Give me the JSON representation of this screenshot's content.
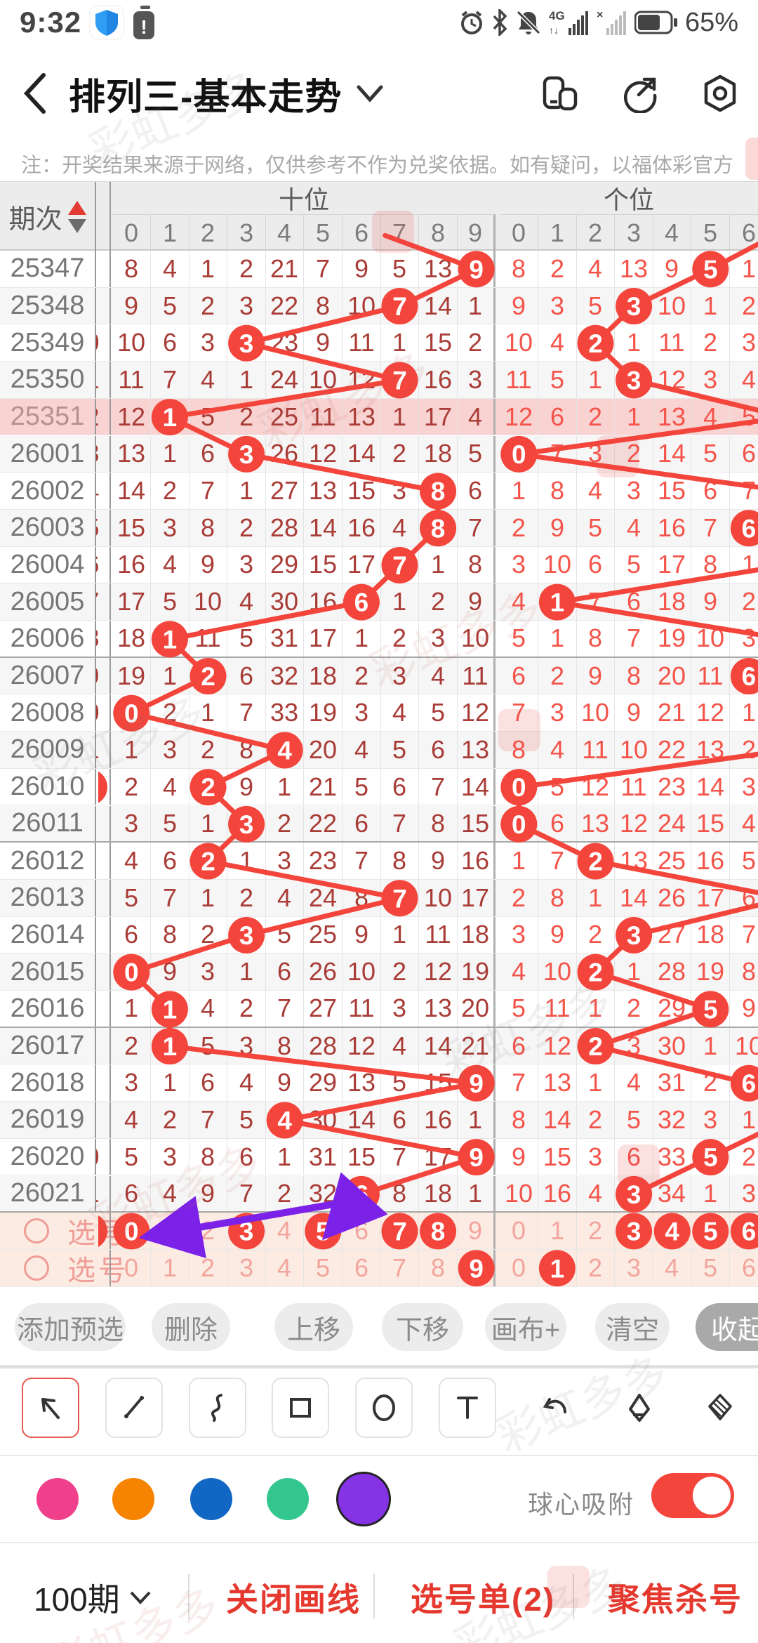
{
  "status_bar": {
    "time": "9:32",
    "battery_pct": "65%",
    "network": "4G"
  },
  "title_bar": {
    "title": "排列三-基本走势"
  },
  "notice": "注：开奖结果来源于网络，仅供参考不作为兑奖依据。如有疑问，以福体彩官方数据为准。",
  "watermark": "彩虹多多",
  "table": {
    "period_header": "期次",
    "tens_header": "十位",
    "units_header": "个位",
    "tens_digits": [
      "0",
      "1",
      "2",
      "3",
      "4",
      "5",
      "6",
      "7",
      "8",
      "9"
    ],
    "units_digits": [
      "0",
      "1",
      "2",
      "3",
      "4",
      "5",
      "6"
    ],
    "pick_label": "选号",
    "rows": [
      {
        "id": "25347",
        "sliver": "",
        "tens": [
          "8",
          "4",
          "1",
          "2",
          "21",
          "7",
          "9",
          "5",
          "13",
          "(9)"
        ],
        "units": [
          "8",
          "2",
          "4",
          "13",
          "9",
          "(5)",
          "1"
        ]
      },
      {
        "id": "25348",
        "sliver": "",
        "tens": [
          "9",
          "5",
          "2",
          "3",
          "22",
          "8",
          "10",
          "(7)",
          "14",
          "1"
        ],
        "units": [
          "9",
          "3",
          "5",
          "(3)",
          "10",
          "1",
          "2"
        ]
      },
      {
        "id": "25349",
        "sliver": "0",
        "tens": [
          "10",
          "6",
          "3",
          "(3)",
          "23",
          "9",
          "11",
          "1",
          "15",
          "2"
        ],
        "units": [
          "10",
          "4",
          "(2)",
          "1",
          "11",
          "2",
          "3"
        ]
      },
      {
        "id": "25350",
        "sliver": "1",
        "tens": [
          "11",
          "7",
          "4",
          "1",
          "24",
          "10",
          "12",
          "(7)",
          "16",
          "3"
        ],
        "units": [
          "11",
          "5",
          "1",
          "(3)",
          "12",
          "3",
          "4"
        ]
      },
      {
        "id": "25351",
        "sliver": "2",
        "tens": [
          "12",
          "(1)",
          "5",
          "2",
          "25",
          "11",
          "13",
          "1",
          "17",
          "4"
        ],
        "units": [
          "12",
          "6",
          "2",
          "1",
          "13",
          "4",
          "5"
        ],
        "units_off": true,
        "highlight": true
      },
      {
        "id": "26001",
        "sliver": "3",
        "tens": [
          "13",
          "1",
          "6",
          "(3)",
          "26",
          "12",
          "14",
          "2",
          "18",
          "5"
        ],
        "units": [
          "(0)",
          "7",
          "3",
          "2",
          "14",
          "5",
          "6"
        ]
      },
      {
        "id": "26002",
        "sliver": "4",
        "tens": [
          "14",
          "2",
          "7",
          "1",
          "27",
          "13",
          "15",
          "3",
          "(8)",
          "6"
        ],
        "units": [
          "1",
          "8",
          "4",
          "3",
          "15",
          "6",
          "7"
        ],
        "units_off": true
      },
      {
        "id": "26003",
        "sliver": "5",
        "tens": [
          "15",
          "3",
          "8",
          "2",
          "28",
          "14",
          "16",
          "4",
          "(8)",
          "7"
        ],
        "units": [
          "2",
          "9",
          "5",
          "4",
          "16",
          "7",
          "(6)"
        ]
      },
      {
        "id": "26004",
        "sliver": "6",
        "tens": [
          "16",
          "4",
          "9",
          "3",
          "29",
          "15",
          "17",
          "(7)",
          "1",
          "8"
        ],
        "units": [
          "3",
          "10",
          "6",
          "5",
          "17",
          "8",
          "1"
        ],
        "units_off": true
      },
      {
        "id": "26005",
        "sliver": "7",
        "tens": [
          "17",
          "5",
          "10",
          "4",
          "30",
          "16",
          "(6)",
          "1",
          "2",
          "9"
        ],
        "units": [
          "4",
          "(1)",
          "7",
          "6",
          "18",
          "9",
          "2"
        ]
      },
      {
        "id": "26006",
        "sliver": "8",
        "tens": [
          "18",
          "(1)",
          "11",
          "5",
          "31",
          "17",
          "1",
          "2",
          "3",
          "10"
        ],
        "units": [
          "5",
          "1",
          "8",
          "7",
          "19",
          "10",
          "3"
        ],
        "units_off": true,
        "group_end": true
      },
      {
        "id": "26007",
        "sliver": "9",
        "tens": [
          "19",
          "1",
          "(2)",
          "6",
          "32",
          "18",
          "2",
          "3",
          "4",
          "11"
        ],
        "units": [
          "6",
          "2",
          "9",
          "8",
          "20",
          "11",
          "(6)"
        ]
      },
      {
        "id": "26008",
        "sliver": "0",
        "tens": [
          "(0)",
          "2",
          "1",
          "7",
          "33",
          "19",
          "3",
          "4",
          "5",
          "12"
        ],
        "units": [
          "7",
          "3",
          "10",
          "9",
          "21",
          "12",
          "1"
        ],
        "units_off": true
      },
      {
        "id": "26009",
        "sliver": "1",
        "tens": [
          "1",
          "3",
          "2",
          "8",
          "(4)",
          "20",
          "4",
          "5",
          "6",
          "13"
        ],
        "units": [
          "8",
          "4",
          "11",
          "10",
          "22",
          "13",
          "2"
        ],
        "units_off": true
      },
      {
        "id": "26010",
        "sliver": "",
        "sliver_circle": true,
        "tens": [
          "2",
          "4",
          "(2)",
          "9",
          "1",
          "21",
          "5",
          "6",
          "7",
          "14"
        ],
        "units": [
          "(0)",
          "5",
          "12",
          "11",
          "23",
          "14",
          "3"
        ]
      },
      {
        "id": "26011",
        "sliver": "",
        "tens": [
          "3",
          "5",
          "1",
          "(3)",
          "2",
          "22",
          "6",
          "7",
          "8",
          "15"
        ],
        "units": [
          "(0)",
          "6",
          "13",
          "12",
          "24",
          "15",
          "4"
        ],
        "group_end": true
      },
      {
        "id": "26012",
        "sliver": "",
        "tens": [
          "4",
          "6",
          "(2)",
          "1",
          "3",
          "23",
          "7",
          "8",
          "9",
          "16"
        ],
        "units": [
          "1",
          "7",
          "(2)",
          "13",
          "25",
          "16",
          "5"
        ]
      },
      {
        "id": "26013",
        "sliver": "",
        "tens": [
          "5",
          "7",
          "1",
          "2",
          "4",
          "24",
          "8",
          "(7)",
          "10",
          "17"
        ],
        "units": [
          "2",
          "8",
          "1",
          "14",
          "26",
          "17",
          "6"
        ],
        "units_off": true
      },
      {
        "id": "26014",
        "sliver": "",
        "tens": [
          "6",
          "8",
          "2",
          "(3)",
          "5",
          "25",
          "9",
          "1",
          "11",
          "18"
        ],
        "units": [
          "3",
          "9",
          "2",
          "(3)",
          "27",
          "18",
          "7"
        ]
      },
      {
        "id": "26015",
        "sliver": "",
        "tens": [
          "(0)",
          "9",
          "3",
          "1",
          "6",
          "26",
          "10",
          "2",
          "12",
          "19"
        ],
        "units": [
          "4",
          "10",
          "(2)",
          "1",
          "28",
          "19",
          "8"
        ]
      },
      {
        "id": "26016",
        "sliver": "",
        "tens": [
          "1",
          "(1)",
          "4",
          "2",
          "7",
          "27",
          "11",
          "3",
          "13",
          "20"
        ],
        "units": [
          "5",
          "11",
          "1",
          "2",
          "29",
          "(5)",
          "9"
        ],
        "group_end": true
      },
      {
        "id": "26017",
        "sliver": "",
        "tens": [
          "2",
          "(1)",
          "5",
          "3",
          "8",
          "28",
          "12",
          "4",
          "14",
          "21"
        ],
        "units": [
          "6",
          "12",
          "(2)",
          "3",
          "30",
          "1",
          "10"
        ]
      },
      {
        "id": "26018",
        "sliver": "",
        "tens": [
          "3",
          "1",
          "6",
          "4",
          "9",
          "29",
          "13",
          "5",
          "15",
          "(9)"
        ],
        "units": [
          "7",
          "13",
          "1",
          "4",
          "31",
          "2",
          "(6)"
        ]
      },
      {
        "id": "26019",
        "sliver": "",
        "tens": [
          "4",
          "2",
          "7",
          "5",
          "(4)",
          "30",
          "14",
          "6",
          "16",
          "1"
        ],
        "units": [
          "8",
          "14",
          "2",
          "5",
          "32",
          "3",
          "1"
        ],
        "units_off": true
      },
      {
        "id": "26020",
        "sliver": "0",
        "tens": [
          "5",
          "3",
          "8",
          "6",
          "1",
          "31",
          "15",
          "7",
          "17",
          "(9)"
        ],
        "units": [
          "9",
          "15",
          "3",
          "6",
          "33",
          "(5)",
          "2"
        ]
      },
      {
        "id": "26021",
        "sliver": "1",
        "tens": [
          "6",
          "4",
          "9",
          "7",
          "2",
          "32",
          "(6)",
          "8",
          "18",
          "1"
        ],
        "units": [
          "10",
          "16",
          "4",
          "(3)",
          "34",
          "1",
          "3"
        ],
        "group_end": true
      }
    ],
    "pick_rows": [
      {
        "label": "选号",
        "sliver_circle": true,
        "tens": [
          "(0)",
          "1",
          "2",
          "(3)",
          "4",
          "(5)",
          "6",
          "(7)",
          "(8)",
          "9"
        ],
        "units": [
          "0",
          "1",
          "2",
          "(3)",
          "(4)",
          "(5)",
          "(6)"
        ]
      },
      {
        "label": "选号",
        "tens": [
          "0",
          "1",
          "2",
          "3",
          "4",
          "5",
          "6",
          "7",
          "8",
          "(9)"
        ],
        "units": [
          "0",
          "(1)",
          "2",
          "3",
          "4",
          "5",
          "6"
        ]
      }
    ]
  },
  "toolbar": {
    "buttons": [
      "添加预选",
      "删除",
      "上移",
      "下移",
      "画布+",
      "清空",
      "收起"
    ]
  },
  "draw_tools": {
    "boxed": [
      "arrow-tool",
      "line-tool",
      "curve-tool",
      "rect-tool",
      "ellipse-tool",
      "text-tool"
    ],
    "plain": [
      "undo",
      "eraser",
      "eraser-all"
    ],
    "selected": "arrow-tool"
  },
  "palette": {
    "colors": [
      "#f0408b",
      "#f78400",
      "#1266c4",
      "#33c78f",
      "#8633e6"
    ],
    "selected": "#8633e6",
    "snap_label": "球心吸附",
    "snap_on": true
  },
  "bottom_bar": {
    "period_count": "100期",
    "links": [
      "关闭画线",
      "选号单(2)",
      "聚焦杀号"
    ]
  },
  "accents": {
    "red": "#f3453b",
    "dark_red": "#a93c36",
    "bright_red": "#f4544a",
    "purple": "#7c22e8",
    "highlight_row": "#f8d3d2",
    "pick_row": "#fcebe3"
  }
}
